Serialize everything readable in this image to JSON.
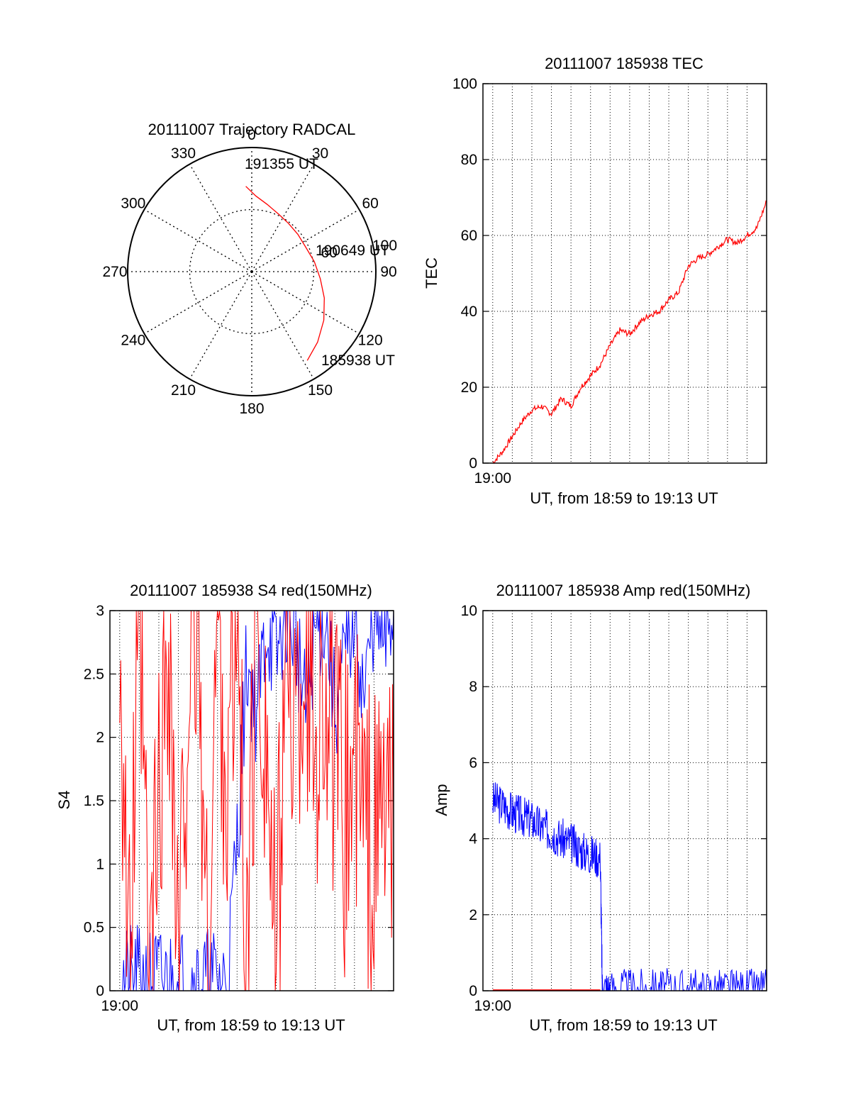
{
  "colors": {
    "red": "#ff0000",
    "blue": "#0000ff",
    "axes": "#000000",
    "grid": "#000000"
  },
  "chart_data": [
    {
      "type": "polar",
      "title": "20111007 Trajectory RADCAL",
      "azimuth_labels": [
        "0",
        "30",
        "60",
        "90",
        "120",
        "150",
        "180",
        "210",
        "240",
        "270",
        "300",
        "330"
      ],
      "ring_labels": [
        "60",
        "100"
      ],
      "series": [
        {
          "color": "#ff0000",
          "points": [
            {
              "az": 148,
              "el": 14
            },
            {
              "az": 137,
              "el": 20
            },
            {
              "az": 124,
              "el": 27
            },
            {
              "az": 110,
              "el": 34
            },
            {
              "az": 96,
              "el": 40
            },
            {
              "az": 81,
              "el": 44
            },
            {
              "az": 66,
              "el": 47
            },
            {
              "az": 51,
              "el": 47
            },
            {
              "az": 37,
              "el": 46
            },
            {
              "az": 25,
              "el": 44
            },
            {
              "az": 13,
              "el": 40
            },
            {
              "az": 3,
              "el": 35
            },
            {
              "az": -4,
              "el": 28
            }
          ]
        }
      ],
      "annotations": [
        "191355 UT",
        "190649 UT",
        "185938 UT"
      ]
    },
    {
      "type": "line",
      "title": "20111007 185938 TEC",
      "xlabel": "UT, from 18:59 to 19:13 UT",
      "ylabel": "TEC",
      "x_tick_labels": [
        "19:00"
      ],
      "ylim": [
        0,
        100
      ],
      "y_ticks": [
        0,
        20,
        40,
        60,
        80,
        100
      ],
      "grid": true,
      "series": [
        {
          "color": "#ff0000",
          "x": [
            0,
            0.5,
            1,
            1.5,
            2,
            2.5,
            3,
            3.5,
            4,
            4.5,
            5,
            5.5,
            6,
            6.5,
            7,
            7.5,
            8,
            8.5,
            9,
            9.5,
            10,
            10.5,
            11,
            11.5,
            12,
            12.5,
            13,
            13.5,
            14
          ],
          "y": [
            0,
            3,
            7,
            11,
            14,
            15,
            13,
            17,
            15,
            20,
            23,
            26,
            31,
            35,
            34,
            37,
            39,
            40,
            43,
            45,
            52,
            54,
            55,
            57,
            59,
            58,
            60,
            62,
            69
          ]
        }
      ]
    },
    {
      "type": "line",
      "title": "20111007 185938 S4 red(150MHz)",
      "xlabel": "UT, from 18:59 to 19:13 UT",
      "ylabel": "S4",
      "x_tick_labels": [
        "19:00"
      ],
      "ylim": [
        0,
        3
      ],
      "y_ticks": [
        "0",
        "0.5",
        "1",
        "1.5",
        "2",
        "2.5",
        "3"
      ],
      "grid": true,
      "series": [
        {
          "color": "#0000ff",
          "x": [
            0,
            0.5,
            1,
            1.5,
            2,
            2.5,
            3,
            3.5,
            4,
            4.5,
            5,
            5.5,
            6,
            6.5,
            7,
            7.5,
            8,
            8.5,
            9,
            9.5,
            10,
            10.5,
            11,
            11.5,
            12,
            12.5,
            13,
            13.5,
            14
          ],
          "y": [
            0.07,
            0.07,
            0.07,
            0.07,
            0.07,
            0.07,
            0.07,
            0.07,
            0.07,
            0.07,
            0.07,
            0.07,
            1.2,
            2.6,
            2.2,
            2.9,
            2.6,
            3.0,
            2.8,
            2.2,
            2.8,
            3.0,
            2.2,
            2.6,
            3.0,
            2.3,
            3.0,
            2.7,
            3.0
          ]
        },
        {
          "color": "#ff0000",
          "x": [
            0,
            0.5,
            1,
            1.5,
            2,
            2.5,
            3,
            3.5,
            4,
            4.5,
            5,
            5.5,
            6,
            6.5,
            7,
            7.5,
            8,
            8.5,
            9,
            9.5,
            10,
            10.5,
            11,
            11.5,
            12,
            12.5,
            13,
            13.5,
            14
          ],
          "y": [
            3.0,
            0.0,
            3.0,
            0.0,
            1.5,
            3.0,
            0.0,
            2.5,
            3.0,
            0.0,
            3.0,
            1.5,
            3.0,
            0.0,
            3.0,
            2.0,
            0.0,
            3.0,
            2.0,
            2.8,
            2.0,
            2.5,
            1.7,
            1.4,
            1.8,
            1.3,
            1.0,
            1.5,
            1.2
          ]
        }
      ]
    },
    {
      "type": "line",
      "title": "20111007 185938 Amp red(150MHz)",
      "xlabel": "UT, from 18:59 to 19:13 UT",
      "ylabel": "Amp",
      "x_tick_labels": [
        "19:00"
      ],
      "ylim": [
        0,
        10
      ],
      "y_ticks": [
        0,
        2,
        4,
        6,
        8,
        10
      ],
      "grid": true,
      "series": [
        {
          "color": "#0000ff",
          "x": [
            0,
            0.5,
            1,
            1.5,
            2,
            2.5,
            3,
            3.5,
            4,
            4.5,
            5,
            5.5,
            5.6,
            6,
            7,
            8,
            9,
            10,
            11,
            12,
            13,
            14
          ],
          "y": [
            5.0,
            4.9,
            4.7,
            4.6,
            4.5,
            4.3,
            4.2,
            4.0,
            3.9,
            3.7,
            3.6,
            3.5,
            0.1,
            0.06,
            0.05,
            0.05,
            0.05,
            0.05,
            0.05,
            0.05,
            0.05,
            0.05
          ]
        },
        {
          "color": "#ff0000",
          "x": [
            0,
            5.5
          ],
          "y": [
            0.02,
            0.02
          ]
        }
      ]
    }
  ]
}
